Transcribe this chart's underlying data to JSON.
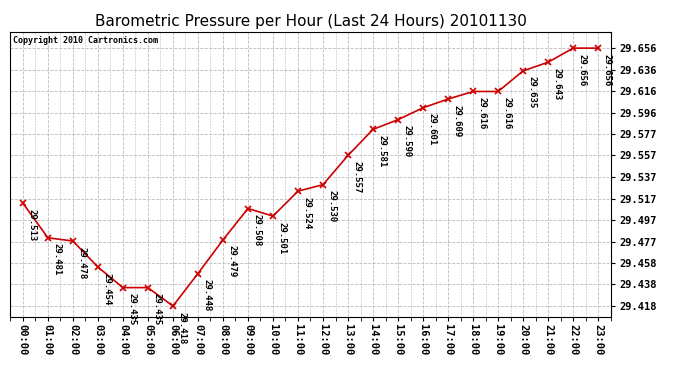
{
  "title": "Barometric Pressure per Hour (Last 24 Hours) 20101130",
  "copyright": "Copyright 2010 Cartronics.com",
  "hours": [
    "00:00",
    "01:00",
    "02:00",
    "03:00",
    "04:00",
    "05:00",
    "06:00",
    "07:00",
    "08:00",
    "09:00",
    "10:00",
    "11:00",
    "12:00",
    "13:00",
    "14:00",
    "15:00",
    "16:00",
    "17:00",
    "18:00",
    "19:00",
    "20:00",
    "21:00",
    "22:00",
    "23:00"
  ],
  "values": [
    29.513,
    29.481,
    29.478,
    29.454,
    29.435,
    29.435,
    29.418,
    29.448,
    29.479,
    29.508,
    29.501,
    29.524,
    29.53,
    29.557,
    29.581,
    29.59,
    29.601,
    29.609,
    29.616,
    29.616,
    29.635,
    29.643,
    29.656,
    29.656
  ],
  "line_color": "#cc0000",
  "marker_color": "#cc0000",
  "bg_color": "#ffffff",
  "grid_color": "#bbbbbb",
  "yticks": [
    29.418,
    29.438,
    29.458,
    29.477,
    29.497,
    29.517,
    29.537,
    29.557,
    29.577,
    29.596,
    29.616,
    29.636,
    29.656
  ],
  "ylim": [
    29.408,
    29.671
  ],
  "title_fontsize": 11,
  "tick_fontsize": 7.5,
  "annotation_fontsize": 6.5
}
